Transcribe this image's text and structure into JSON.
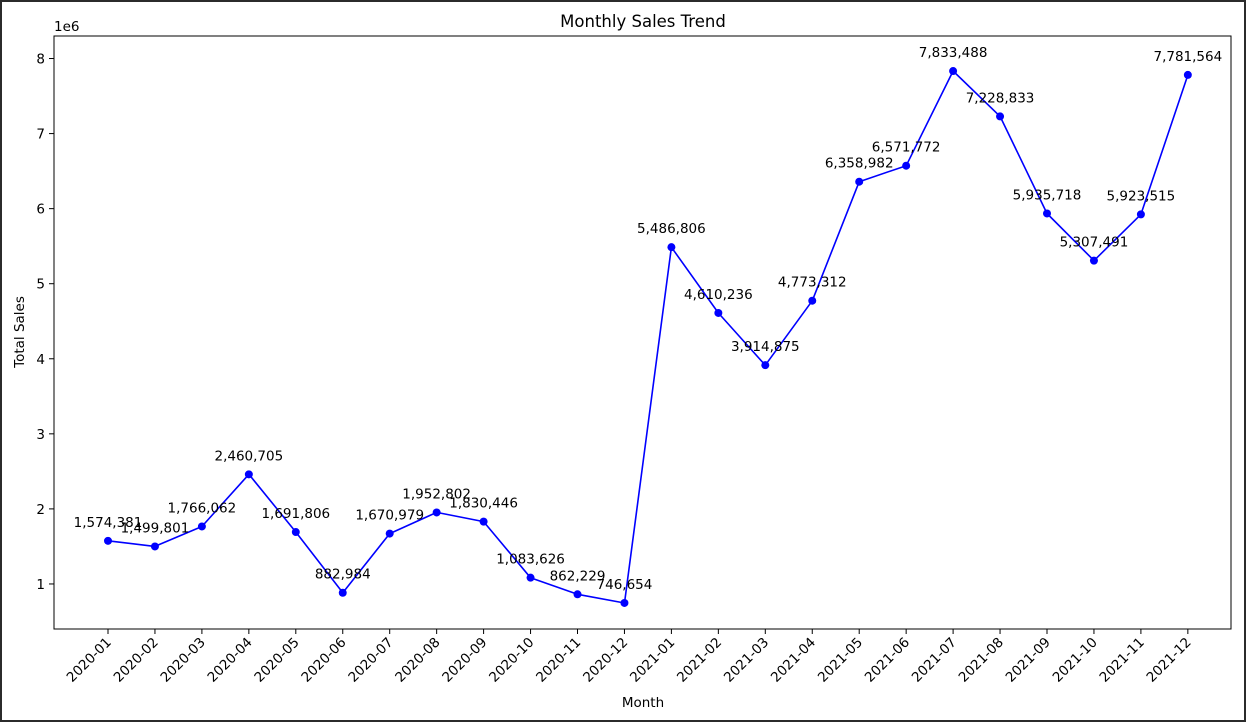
{
  "chart_data": {
    "type": "line",
    "title": "Monthly Sales Trend",
    "xlabel": "Month",
    "ylabel": "Total Sales",
    "y_offset_label": "1e6",
    "ylim": [
      0.4,
      8.3
    ],
    "y_ticks": [
      1,
      2,
      3,
      4,
      5,
      6,
      7,
      8
    ],
    "y_tick_labels": [
      "1",
      "2",
      "3",
      "4",
      "5",
      "6",
      "7",
      "8"
    ],
    "grid": false,
    "line_color": "#0000ff",
    "categories": [
      "2020-01",
      "2020-02",
      "2020-03",
      "2020-04",
      "2020-05",
      "2020-06",
      "2020-07",
      "2020-08",
      "2020-09",
      "2020-10",
      "2020-11",
      "2020-12",
      "2021-01",
      "2021-02",
      "2021-03",
      "2021-04",
      "2021-05",
      "2021-06",
      "2021-07",
      "2021-08",
      "2021-09",
      "2021-10",
      "2021-11",
      "2021-12"
    ],
    "values": [
      1574381,
      1499801,
      1766062,
      2460705,
      1691806,
      882984,
      1670979,
      1952802,
      1830446,
      1083626,
      862229,
      746654,
      5486806,
      4610236,
      3914875,
      4773312,
      6358982,
      6571772,
      7833488,
      7228833,
      5935718,
      5307491,
      5923515,
      7781564
    ],
    "value_labels": [
      "1,574,381",
      "1,499,801",
      "1,766,062",
      "2,460,705",
      "1,691,806",
      "882,984",
      "1,670,979",
      "1,952,802",
      "1,830,446",
      "1,083,626",
      "862,229",
      "746,654",
      "5,486,806",
      "4,610,236",
      "3,914,875",
      "4,773,312",
      "6,358,982",
      "6,571,772",
      "7,833,488",
      "7,228,833",
      "5,935,718",
      "5,307,491",
      "5,923,515",
      "7,781,564"
    ]
  }
}
